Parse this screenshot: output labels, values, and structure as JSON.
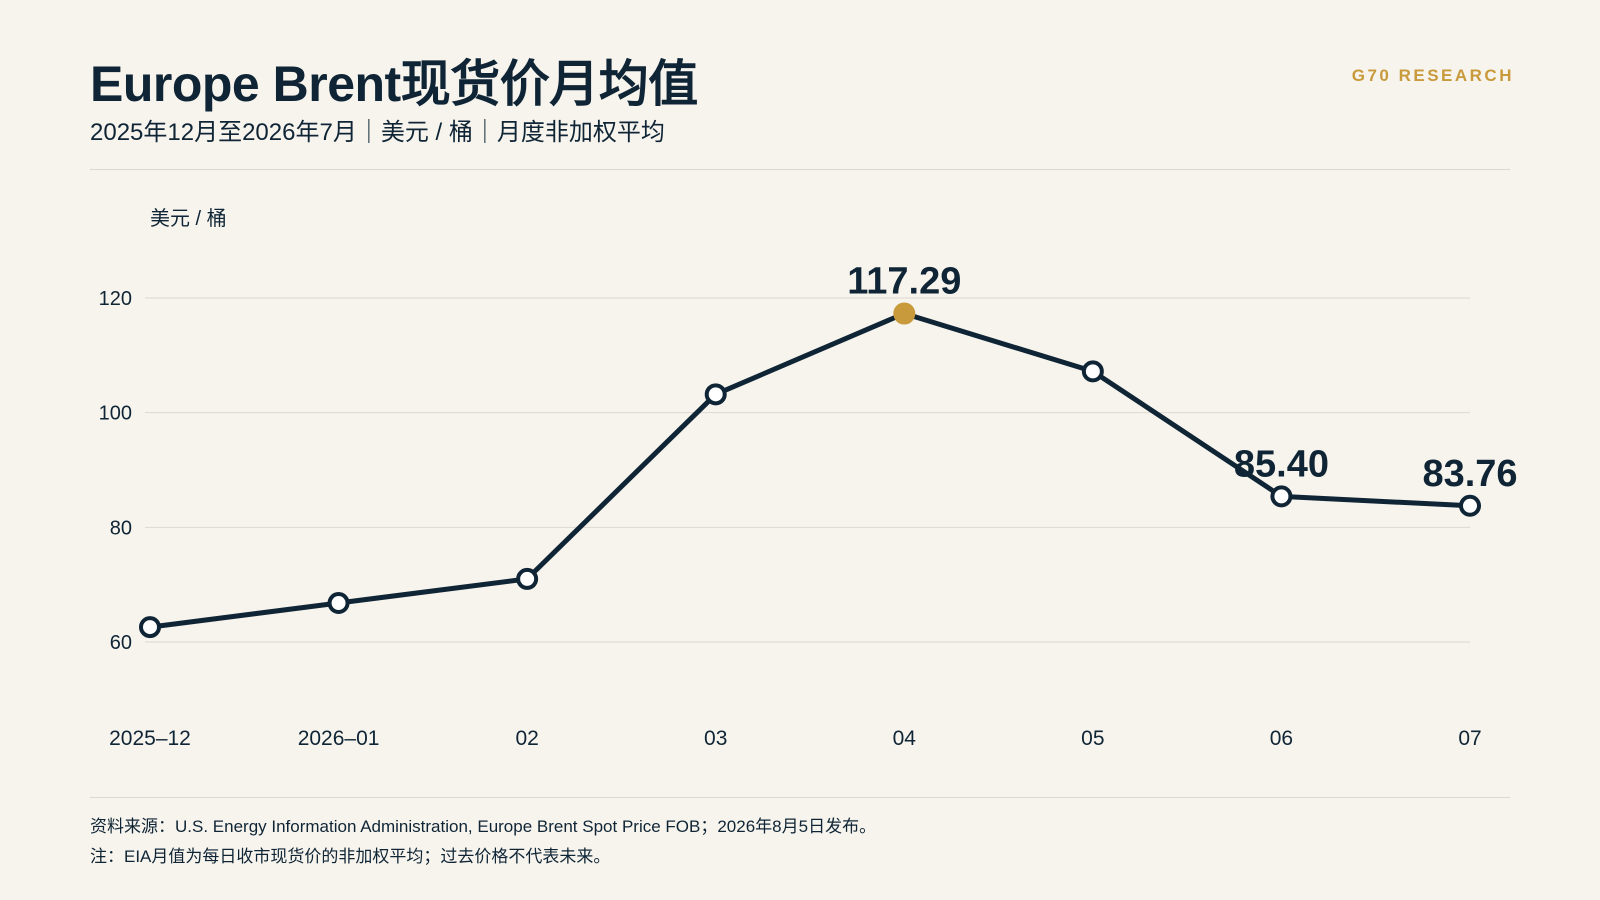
{
  "header": {
    "title": "Europe Brent现货价月均值",
    "subtitle": "2025年12月至2026年7月｜美元 / 桶｜月度非加权平均",
    "brand": "G70 RESEARCH"
  },
  "footer": {
    "source": "资料来源：U.S. Energy Information Administration, Europe Brent Spot Price FOB；2026年8月5日发布。",
    "note": "注：EIA月值为每日收市现货价的非加权平均；过去价格不代表未来。"
  },
  "colors": {
    "line": "#0f2535",
    "highlight": "#c99a3b",
    "grid": "#dcd8d0",
    "background": "#f7f4ee"
  },
  "chart_data": {
    "type": "line",
    "ylabel": "美元 / 桶",
    "ylim": [
      60,
      120
    ],
    "yticks": [
      60,
      80,
      100,
      120
    ],
    "grid": true,
    "categories": [
      "2025–12",
      "2026–01",
      "02",
      "03",
      "04",
      "05",
      "06",
      "07"
    ],
    "series": [
      {
        "values": [
          62.6,
          66.8,
          71.0,
          103.2,
          117.29,
          107.2,
          85.4,
          83.76
        ]
      }
    ],
    "highlight_index": 4,
    "data_labels": [
      {
        "index": 4,
        "text": "117.29"
      },
      {
        "index": 6,
        "text": "85.40"
      },
      {
        "index": 7,
        "text": "83.76"
      }
    ]
  }
}
